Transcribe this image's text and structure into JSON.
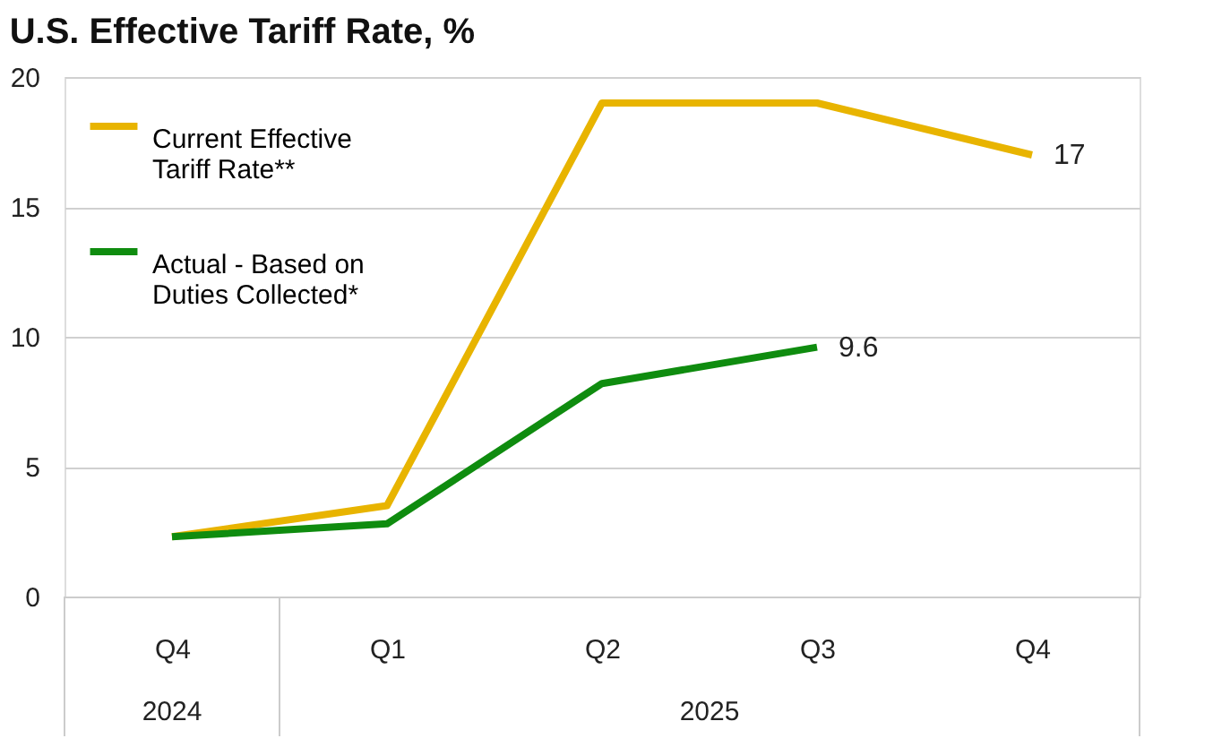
{
  "chart_data": {
    "type": "line",
    "title": "U.S. Effective Tariff Rate, %",
    "categories": [
      "Q4",
      "Q1",
      "Q2",
      "Q3",
      "Q4"
    ],
    "series": [
      {
        "name": "Current Effective Tariff Rate**",
        "color": "#e8b400",
        "values": [
          2.3,
          3.5,
          19.0,
          19.0,
          17.0
        ],
        "value_labels": [
          null,
          null,
          null,
          null,
          "17"
        ]
      },
      {
        "name": "Actual  - Based on Duties Collected*",
        "color": "#0f8c0f",
        "values": [
          2.3,
          2.8,
          8.2,
          9.6,
          null
        ],
        "value_labels": [
          null,
          null,
          null,
          "9.6",
          null
        ]
      }
    ],
    "annotations": [
      "2024",
      "2025"
    ],
    "ylim": [
      0,
      20
    ],
    "yticks": [
      0,
      5,
      10,
      15,
      20
    ],
    "grid": "y",
    "legend": "top left",
    "marker": "none",
    "line_style": "solid"
  }
}
